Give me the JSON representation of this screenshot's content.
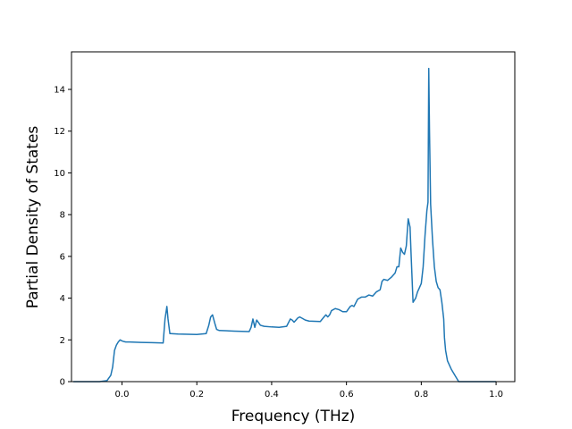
{
  "chart_data": {
    "type": "line",
    "title": "",
    "xlabel": "Frequency (THz)",
    "ylabel": "Partial Density of States",
    "xlim": [
      -0.135,
      1.05
    ],
    "ylim": [
      0,
      15.8
    ],
    "xticks": [
      0.0,
      0.2,
      0.4,
      0.6,
      0.8,
      1.0
    ],
    "xtick_labels": [
      "0.0",
      "0.2",
      "0.4",
      "0.6",
      "0.8",
      "1.0"
    ],
    "yticks": [
      0,
      2,
      4,
      6,
      8,
      10,
      12,
      14
    ],
    "ytick_labels": [
      "0",
      "2",
      "4",
      "6",
      "8",
      "10",
      "12",
      "14"
    ],
    "grid": false,
    "legend": "none",
    "series": [
      {
        "color": "#1f77b4",
        "x": [
          -0.13,
          -0.09,
          -0.06,
          -0.04,
          -0.03,
          -0.025,
          -0.02,
          -0.015,
          -0.01,
          -0.005,
          0.0,
          0.005,
          0.01,
          0.02,
          0.05,
          0.08,
          0.11,
          0.115,
          0.12,
          0.123,
          0.128,
          0.13,
          0.15,
          0.2,
          0.225,
          0.232,
          0.237,
          0.242,
          0.248,
          0.253,
          0.26,
          0.3,
          0.34,
          0.345,
          0.35,
          0.355,
          0.36,
          0.37,
          0.38,
          0.4,
          0.42,
          0.44,
          0.45,
          0.455,
          0.46,
          0.47,
          0.475,
          0.48,
          0.49,
          0.5,
          0.53,
          0.54,
          0.545,
          0.55,
          0.555,
          0.56,
          0.57,
          0.58,
          0.59,
          0.6,
          0.61,
          0.615,
          0.62,
          0.63,
          0.64,
          0.65,
          0.66,
          0.67,
          0.68,
          0.69,
          0.695,
          0.7,
          0.71,
          0.72,
          0.73,
          0.735,
          0.74,
          0.745,
          0.75,
          0.755,
          0.76,
          0.765,
          0.77,
          0.773,
          0.778,
          0.785,
          0.79,
          0.795,
          0.8,
          0.805,
          0.81,
          0.815,
          0.818,
          0.82,
          0.822,
          0.825,
          0.83,
          0.835,
          0.84,
          0.845,
          0.85,
          0.855,
          0.86,
          0.862,
          0.865,
          0.87,
          0.88,
          0.89,
          0.9,
          0.905,
          0.95,
          1.0
        ],
        "y": [
          0,
          0,
          0,
          0.05,
          0.3,
          0.7,
          1.5,
          1.75,
          1.9,
          2.0,
          1.95,
          1.92,
          1.9,
          1.9,
          1.88,
          1.87,
          1.85,
          3.0,
          3.6,
          3.0,
          2.3,
          2.3,
          2.28,
          2.26,
          2.3,
          2.7,
          3.1,
          3.2,
          2.8,
          2.5,
          2.45,
          2.42,
          2.4,
          2.6,
          3.0,
          2.6,
          2.95,
          2.7,
          2.65,
          2.62,
          2.6,
          2.65,
          3.0,
          2.95,
          2.85,
          3.05,
          3.1,
          3.05,
          2.95,
          2.9,
          2.88,
          3.1,
          3.2,
          3.1,
          3.2,
          3.4,
          3.5,
          3.45,
          3.35,
          3.35,
          3.6,
          3.65,
          3.6,
          3.95,
          4.05,
          4.05,
          4.15,
          4.1,
          4.3,
          4.4,
          4.8,
          4.9,
          4.85,
          5.0,
          5.2,
          5.5,
          5.5,
          6.4,
          6.2,
          6.1,
          6.5,
          7.8,
          7.4,
          6.0,
          3.8,
          4.0,
          4.3,
          4.5,
          4.7,
          5.5,
          7.0,
          8.2,
          8.6,
          15.0,
          12.0,
          8.5,
          6.8,
          5.5,
          4.8,
          4.5,
          4.4,
          3.8,
          3.0,
          2.1,
          1.5,
          1.0,
          0.6,
          0.3,
          0.0,
          0.0,
          0.0,
          0.0
        ]
      }
    ]
  }
}
